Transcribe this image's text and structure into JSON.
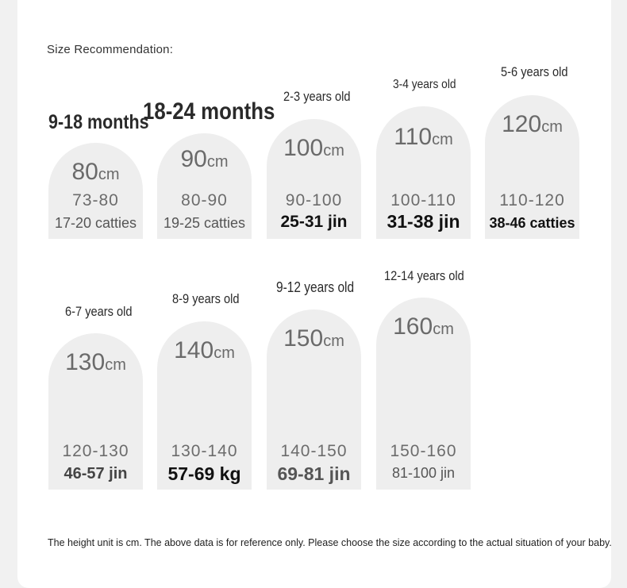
{
  "heading": "Size Recommendation:",
  "unit": "cm",
  "sizes": [
    {
      "age": "9-18 months",
      "height": "80",
      "range": "73-80",
      "weight": "17-20 catties"
    },
    {
      "age": "18-24 months",
      "height": "90",
      "range": "80-90",
      "weight": "19-25 catties"
    },
    {
      "age": "2-3 years old",
      "height": "100",
      "range": "90-100",
      "weight": "25-31 jin"
    },
    {
      "age": "3-4 years old",
      "height": "110",
      "range": "100-110",
      "weight": "31-38 jin"
    },
    {
      "age": "5-6 years old",
      "height": "120",
      "range": "110-120",
      "weight": "38-46 catties"
    },
    {
      "age": "6-7 years old",
      "height": "130",
      "range": "120-130",
      "weight": "46-57 jin"
    },
    {
      "age": "8-9 years old",
      "height": "140",
      "range": "130-140",
      "weight": "57-69 kg"
    },
    {
      "age": "9-12 years old",
      "height": "150",
      "range": "140-150",
      "weight": "69-81 jin"
    },
    {
      "age": "12-14 years old",
      "height": "160",
      "range": "150-160",
      "weight": "81-100 jin"
    }
  ],
  "note": "The height unit is cm. The above data is for reference only. Please choose the size according to the actual situation of your baby."
}
